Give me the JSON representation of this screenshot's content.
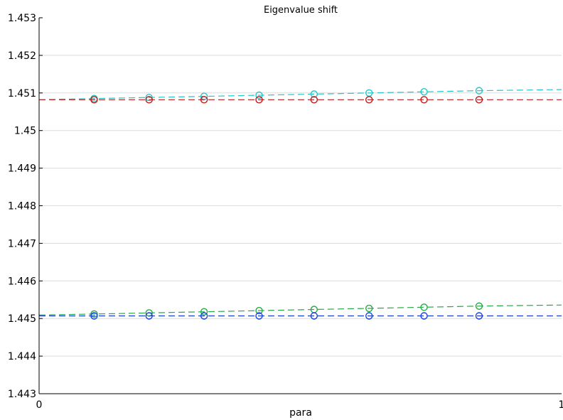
{
  "chart_data": {
    "type": "line",
    "title": "Eigenvalue shift",
    "xlabel": "para",
    "ylabel": "",
    "xlim": [
      0,
      1
    ],
    "ylim": [
      1.443,
      1.453
    ],
    "x_ticks": [
      0,
      1
    ],
    "x_tick_labels": [
      "0",
      "1"
    ],
    "y_ticks": [
      1.443,
      1.444,
      1.445,
      1.446,
      1.447,
      1.448,
      1.449,
      1.45,
      1.451,
      1.452,
      1.453
    ],
    "y_tick_labels": [
      "1.443",
      "1.444",
      "1.445",
      "1.446",
      "1.447",
      "1.448",
      "1.449",
      "1.45",
      "1.451",
      "1.452",
      "1.453"
    ],
    "grid": true,
    "x_markers": [
      0.1053,
      0.2105,
      0.3158,
      0.4211,
      0.5263,
      0.6316,
      0.7368,
      0.8421
    ],
    "series": [
      {
        "color": "#22c8c8",
        "x": [
          0,
          0.1053,
          0.2105,
          0.3158,
          0.4211,
          0.5263,
          0.6316,
          0.7368,
          0.8421,
          1.0
        ],
        "values": [
          1.45082,
          1.45085,
          1.45088,
          1.45091,
          1.45094,
          1.45097,
          1.451,
          1.45103,
          1.45106,
          1.45109
        ]
      },
      {
        "color": "#c01818",
        "x": [
          0,
          0.1053,
          0.2105,
          0.3158,
          0.4211,
          0.5263,
          0.6316,
          0.7368,
          0.8421,
          1.0
        ],
        "values": [
          1.45082,
          1.45082,
          1.45082,
          1.45082,
          1.45082,
          1.45082,
          1.45082,
          1.45082,
          1.45082,
          1.45082
        ]
      },
      {
        "color": "#22aa44",
        "x": [
          0,
          0.1053,
          0.2105,
          0.3158,
          0.4211,
          0.5263,
          0.6316,
          0.7368,
          0.8421,
          1.0
        ],
        "values": [
          1.44509,
          1.44512,
          1.44515,
          1.44518,
          1.44521,
          1.44524,
          1.44527,
          1.4453,
          1.44533,
          1.44536
        ]
      },
      {
        "color": "#1a3fd6",
        "x": [
          0,
          0.1053,
          0.2105,
          0.3158,
          0.4211,
          0.5263,
          0.6316,
          0.7368,
          0.8421,
          1.0
        ],
        "values": [
          1.44507,
          1.44507,
          1.44507,
          1.44507,
          1.44507,
          1.44507,
          1.44507,
          1.44507,
          1.44507,
          1.44507
        ]
      }
    ]
  }
}
